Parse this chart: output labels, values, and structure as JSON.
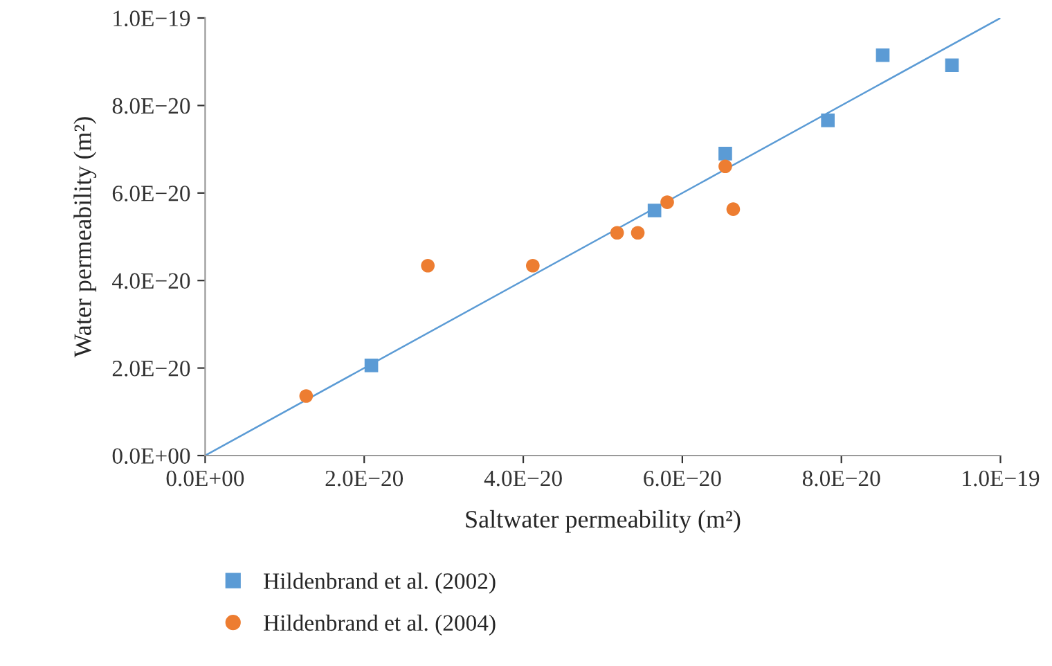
{
  "chart_data": {
    "type": "scatter",
    "xlabel": "Saltwater permeability (m²)",
    "ylabel": "Water permeability (m²)",
    "series": [
      {
        "name": "Hildenbrand et al. (2002)",
        "color": "#5b9bd5",
        "marker": "square",
        "x": [
          2.09e-20,
          5.65e-20,
          6.54e-20,
          7.83e-20,
          8.52e-20,
          9.39e-20
        ],
        "values": [
          2.06e-20,
          5.6e-20,
          6.9e-20,
          7.66e-20,
          9.15e-20,
          8.92e-20
        ]
      },
      {
        "name": "Hildenbrand et al. (2004)",
        "color": "#ed7d31",
        "marker": "circle",
        "x": [
          1.27e-20,
          2.8e-20,
          4.12e-20,
          5.18e-20,
          5.44e-20,
          5.81e-20,
          6.54e-20,
          6.64e-20
        ],
        "values": [
          1.36e-20,
          4.34e-20,
          4.34e-20,
          5.09e-20,
          5.09e-20,
          5.79e-20,
          6.61e-20,
          5.63e-20
        ]
      },
      {
        "type": "line",
        "color": "#5b9bd5",
        "line_style": "solid",
        "x": [
          0,
          1e-19
        ],
        "values": [
          0,
          1e-19
        ]
      }
    ],
    "xlim": [
      0,
      1e-19
    ],
    "ylim": [
      0,
      1e-19
    ],
    "xticks": [
      {
        "value": 0,
        "label": "0.0E+00"
      },
      {
        "value": 2e-20,
        "label": "2.0E−20"
      },
      {
        "value": 4e-20,
        "label": "4.0E−20"
      },
      {
        "value": 6e-20,
        "label": "6.0E−20"
      },
      {
        "value": 8e-20,
        "label": "8.0E−20"
      },
      {
        "value": 1e-19,
        "label": "1.0E−19"
      }
    ],
    "yticks": [
      {
        "value": 0,
        "label": "0.0E+00"
      },
      {
        "value": 2e-20,
        "label": "2.0E−20"
      },
      {
        "value": 4e-20,
        "label": "4.0E−20"
      },
      {
        "value": 6e-20,
        "label": "6.0E−20"
      },
      {
        "value": 8e-20,
        "label": "8.0E−20"
      },
      {
        "value": 1e-19,
        "label": "1.0E−19"
      }
    ],
    "grid": false,
    "legend": "bottom"
  }
}
